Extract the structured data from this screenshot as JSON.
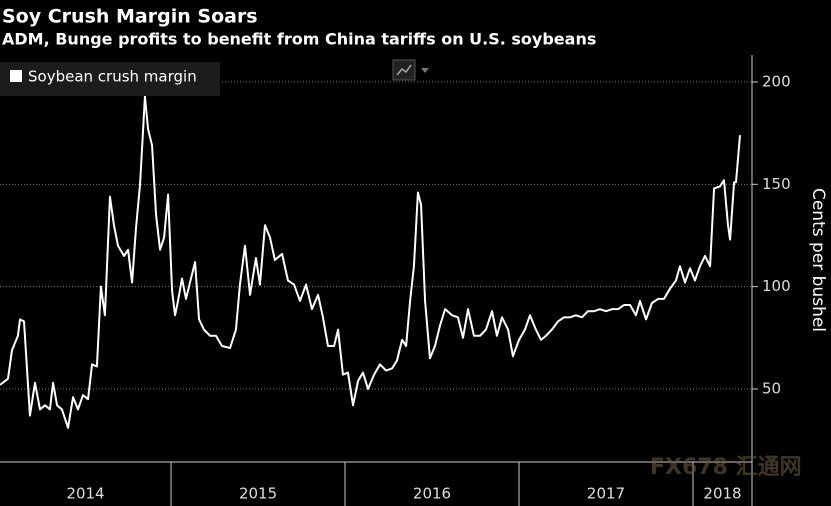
{
  "chart_data": {
    "type": "line",
    "title": "Soy Crush Margin Soars",
    "subtitle": "ADM, Bunge profits to benefit from China tariffs on U.S. soybeans",
    "y_label": "Cents per bushel",
    "watermark": "FX678 汇通网",
    "year_labels": [
      "2014",
      "2015",
      "2016",
      "2017",
      "2018"
    ],
    "xlim": [
      2014.017,
      2018.339
    ],
    "xticks": [
      2015,
      2016,
      2017,
      2018
    ],
    "ylim": [
      14.3,
      213.2
    ],
    "yticks": [
      50,
      100,
      150,
      200
    ],
    "grid": true,
    "legend": "top-left",
    "x": [
      2014.017,
      2014.063,
      2014.086,
      2014.12,
      2014.132,
      2014.155,
      2014.189,
      2014.218,
      2014.247,
      2014.276,
      2014.304,
      2014.322,
      2014.345,
      2014.373,
      2014.408,
      2014.437,
      2014.465,
      2014.494,
      2014.523,
      2014.546,
      2014.574,
      2014.597,
      2014.62,
      2014.649,
      2014.672,
      2014.695,
      2014.73,
      2014.753,
      2014.776,
      2014.799,
      2014.822,
      2014.85,
      2014.868,
      2014.891,
      2014.914,
      2014.937,
      2014.96,
      2014.983,
      2015.006,
      2015.023,
      2015.04,
      2015.063,
      2015.086,
      2015.109,
      2015.138,
      2015.161,
      2015.189,
      2015.224,
      2015.258,
      2015.293,
      2015.339,
      2015.373,
      2015.396,
      2015.425,
      2015.454,
      2015.488,
      2015.511,
      2015.54,
      2015.569,
      2015.597,
      2015.638,
      2015.672,
      2015.707,
      2015.741,
      2015.776,
      2015.81,
      2015.845,
      2015.873,
      2015.902,
      2015.937,
      2015.96,
      2015.988,
      2016.017,
      2016.046,
      2016.075,
      2016.103,
      2016.132,
      2016.167,
      2016.201,
      2016.236,
      2016.27,
      2016.299,
      2016.328,
      2016.351,
      2016.374,
      2016.396,
      2016.419,
      2016.437,
      2016.46,
      2016.488,
      2016.517,
      2016.546,
      2016.575,
      2016.615,
      2016.649,
      2016.678,
      2016.707,
      2016.741,
      2016.776,
      2016.81,
      2016.845,
      2016.873,
      2016.902,
      2016.937,
      2016.965,
      2017.0,
      2017.034,
      2017.063,
      2017.097,
      2017.126,
      2017.155,
      2017.189,
      2017.224,
      2017.258,
      2017.293,
      2017.327,
      2017.362,
      2017.396,
      2017.431,
      2017.465,
      2017.5,
      2017.534,
      2017.569,
      2017.603,
      2017.638,
      2017.672,
      2017.695,
      2017.73,
      2017.764,
      2017.799,
      2017.833,
      2017.868,
      2017.902,
      2017.925,
      2017.954,
      2017.983,
      2018.011,
      2018.04,
      2018.069,
      2018.098,
      2018.121,
      2018.155,
      2018.178,
      2018.201,
      2018.213,
      2018.236,
      2018.247,
      2018.27
    ],
    "series": [
      {
        "name": "Soybean crush margin",
        "color": "#ffffff",
        "values": [
          52,
          55,
          69,
          76,
          84,
          83,
          37,
          53,
          40,
          42,
          40,
          53,
          42,
          40,
          31,
          46,
          40,
          47,
          45,
          62,
          61,
          100,
          86,
          144,
          130,
          120,
          115,
          118,
          102,
          129,
          150,
          193,
          177,
          169,
          135,
          118,
          124,
          145,
          98,
          86,
          93,
          104,
          94,
          102,
          112,
          84,
          79,
          76,
          76,
          71,
          70,
          79,
          101,
          120,
          96,
          114,
          101,
          130,
          124,
          113,
          116,
          103,
          101,
          93,
          101,
          89,
          96,
          85,
          71,
          71,
          79,
          57,
          58,
          42,
          54,
          58,
          50,
          57,
          62,
          59,
          60,
          64,
          74,
          71,
          93,
          110,
          146,
          140,
          93,
          65,
          71,
          81,
          89,
          86,
          85,
          75,
          89,
          76,
          76,
          79,
          88,
          76,
          85,
          79,
          66,
          74,
          79,
          86,
          79,
          74,
          76,
          79,
          83,
          85,
          85,
          86,
          85,
          88,
          88,
          89,
          88,
          89,
          89,
          91,
          91,
          86,
          93,
          84,
          92,
          94,
          94,
          99,
          103,
          110,
          102,
          109,
          103,
          110,
          115,
          110,
          148,
          149,
          152,
          130,
          123,
          151,
          151,
          174
        ]
      }
    ]
  }
}
